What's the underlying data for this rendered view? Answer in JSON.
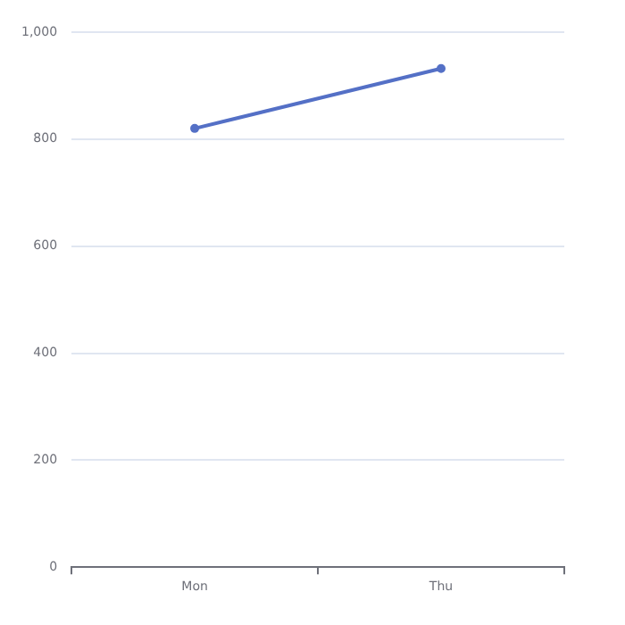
{
  "chart_data": {
    "type": "line",
    "categories": [
      "Mon",
      "Thu"
    ],
    "series": [
      {
        "color": "#5470c6",
        "values": [
          820,
          932
        ]
      }
    ],
    "ylim": [
      0,
      1000
    ],
    "yticks": [
      0,
      200,
      400,
      600,
      800,
      {
        "value": 1000,
        "label": "1,000"
      }
    ],
    "grid": "y",
    "legend": false,
    "marker": "circle",
    "line_style": "solid"
  }
}
